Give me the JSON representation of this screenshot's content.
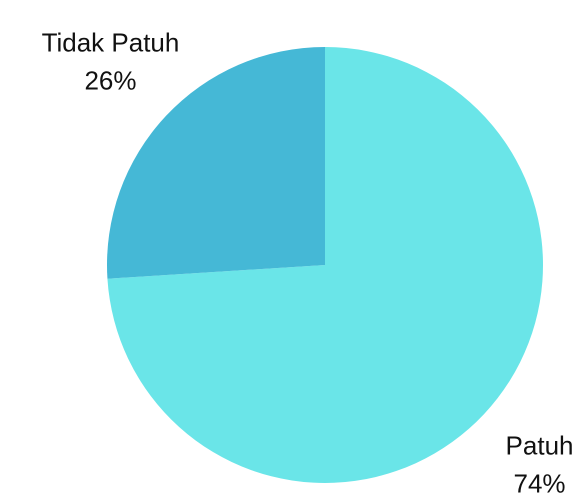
{
  "chart_data": {
    "type": "pie",
    "categories": [
      "Patuh",
      "Tidak Patuh"
    ],
    "values": [
      74,
      26
    ],
    "value_labels": [
      "74%",
      "26%"
    ],
    "colors": [
      "#6ae5e8",
      "#45b8d6"
    ]
  }
}
